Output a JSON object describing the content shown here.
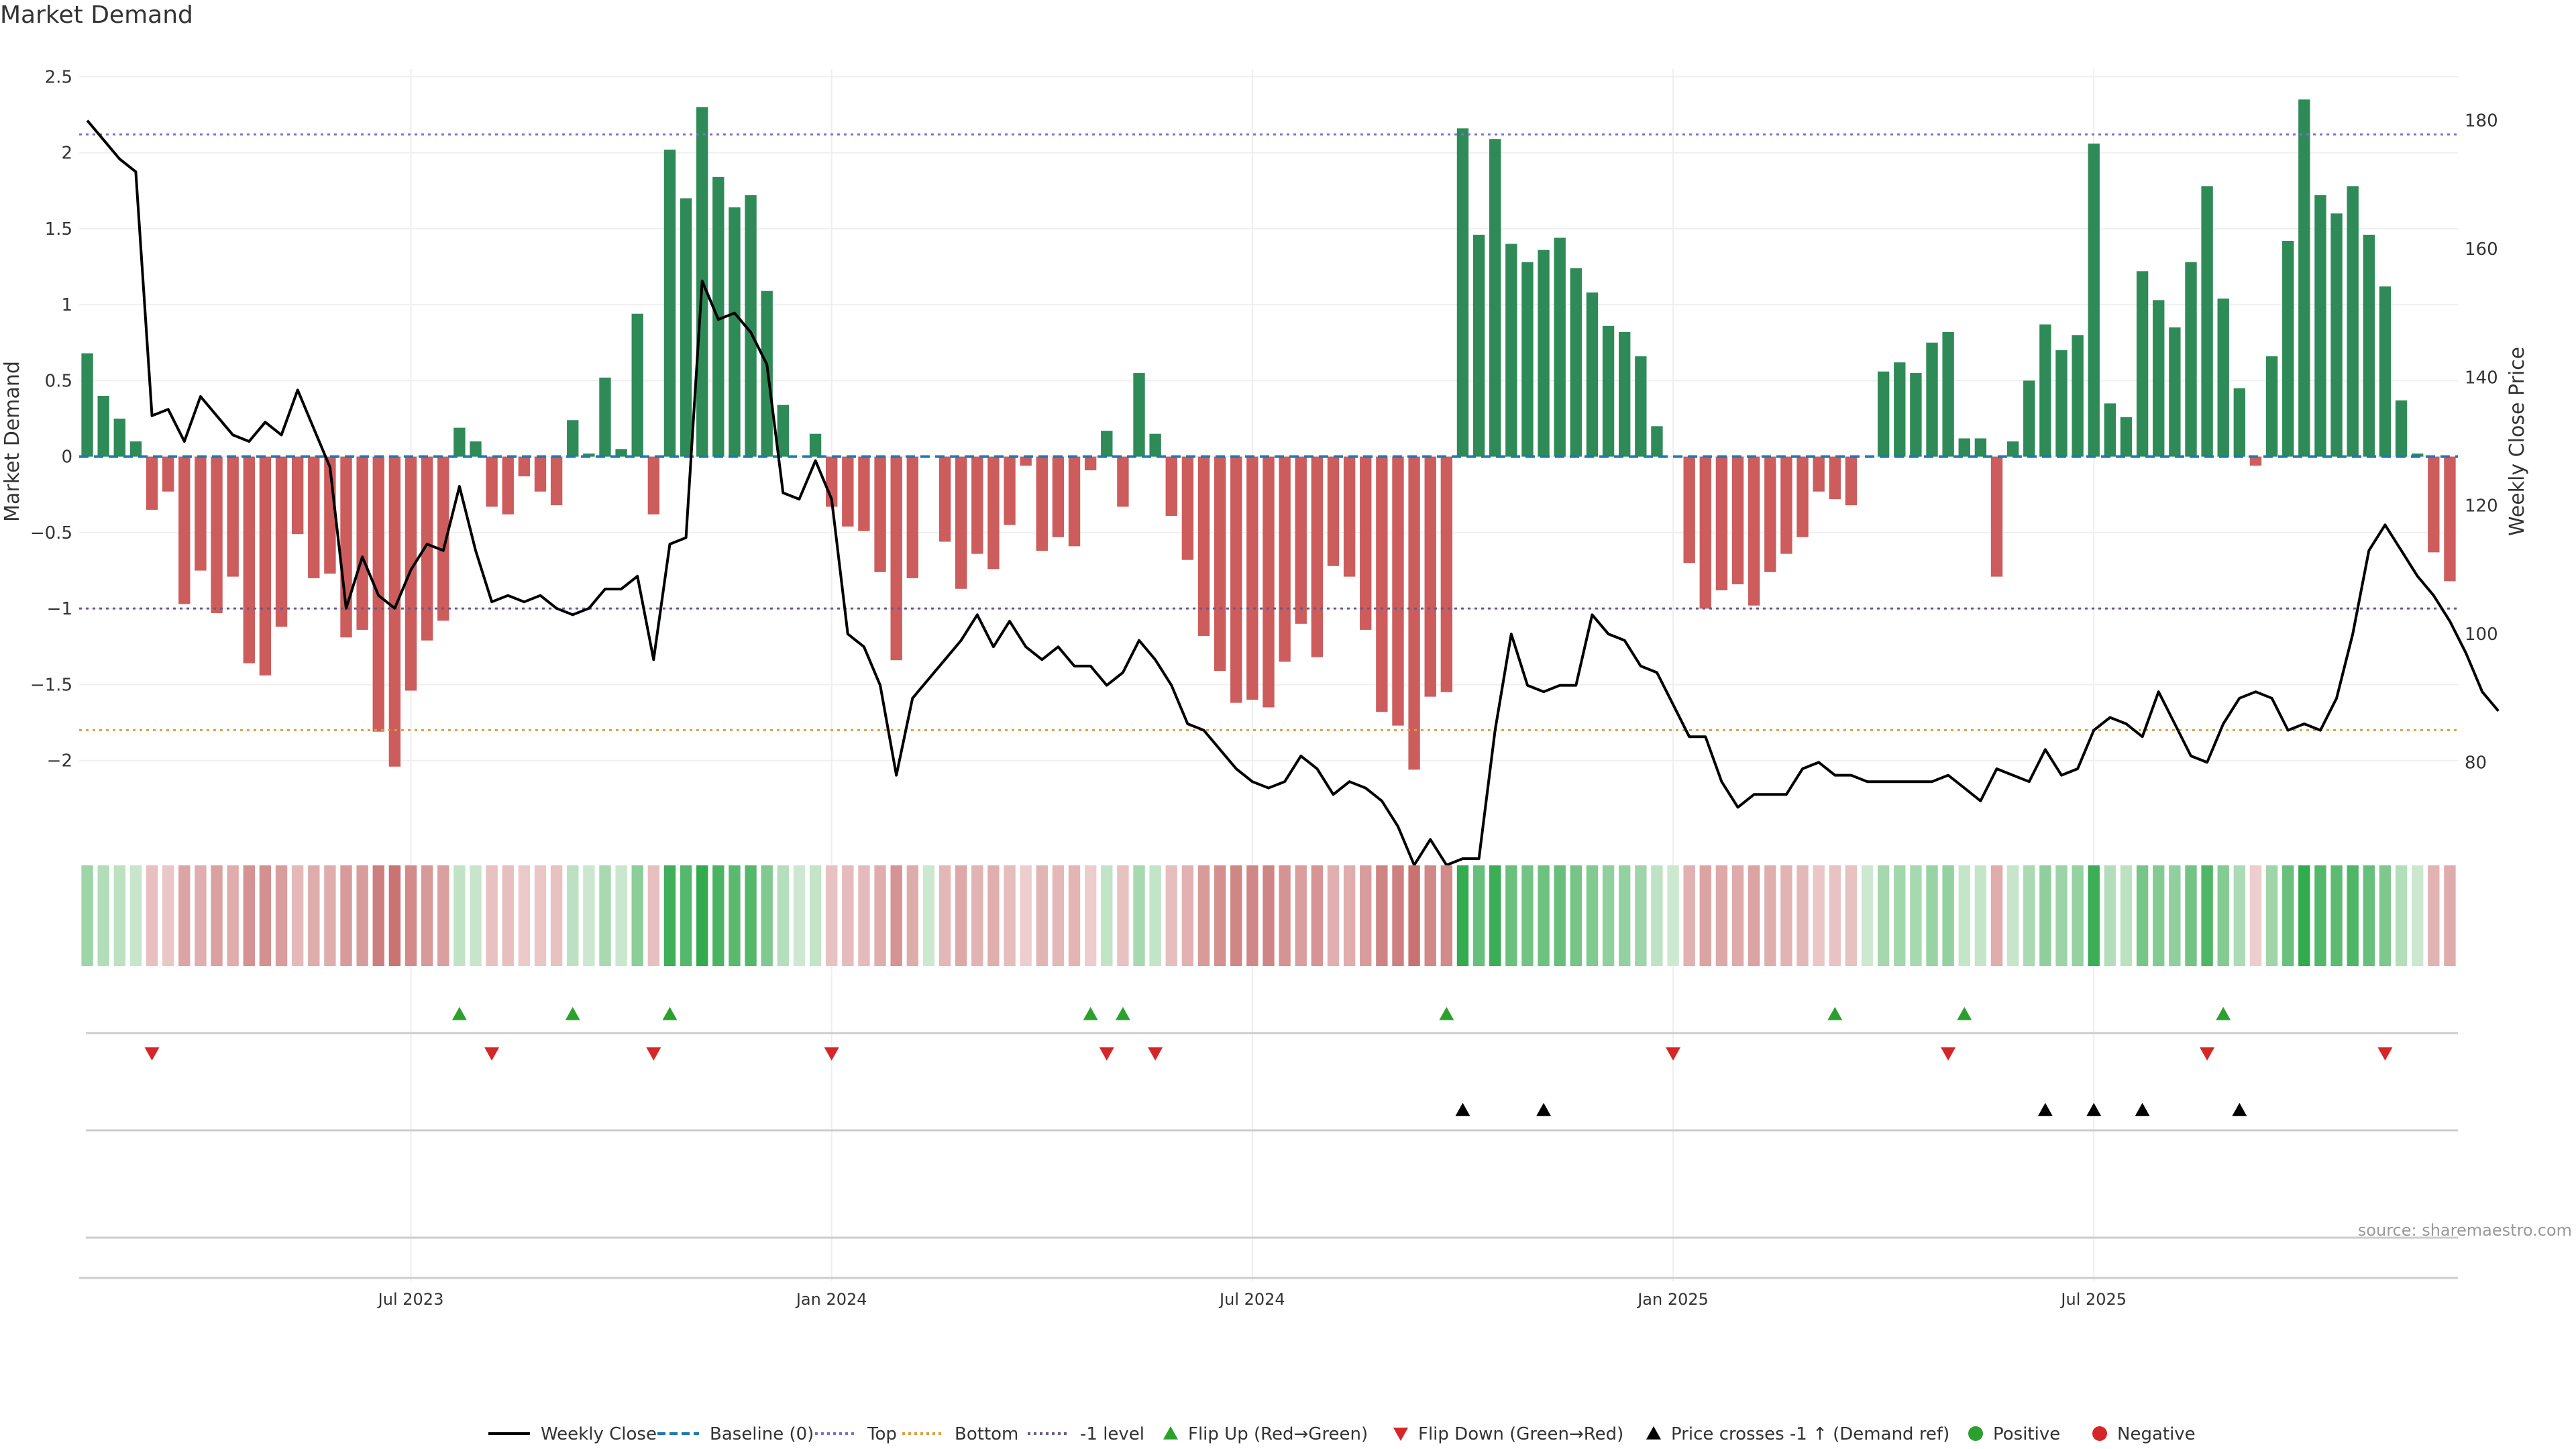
{
  "chart_data": {
    "type": "bar",
    "title": "Market Demand",
    "ylabel": "Market Demand",
    "y2label": "Weekly Close Price",
    "ylim": [
      -2.35,
      2.55
    ],
    "y2lim": [
      72,
      188
    ],
    "yticks": [
      "2.5",
      "2",
      "1.5",
      "1",
      "0.5",
      "0",
      "−0.5",
      "−1",
      "−1.5",
      "−2"
    ],
    "y2ticks": [
      "180",
      "160",
      "140",
      "120",
      "100",
      "80"
    ],
    "xticks": [
      "Jul 2023",
      "Jan 2024",
      "Jul 2024",
      "Jan 2025",
      "Jul 2025"
    ],
    "reference_lines": {
      "top": 2.12,
      "bottom": -1.8,
      "minus_one": -1.0,
      "baseline": 0
    },
    "colors": {
      "positive": "#2e8b57",
      "negative": "#cd5c5c",
      "price": "#000000",
      "top": "#7b6fd1",
      "bottom": "#d8a03c",
      "minus_one": "#6a5a8a",
      "baseline": "#1f77b4",
      "flip_up": "#2ca02c",
      "flip_down": "#d62728",
      "cross": "#000000"
    },
    "series": [
      {
        "name": "Market Demand",
        "values": [
          0.68,
          0.4,
          0.25,
          0.1,
          -0.35,
          -0.23,
          -0.97,
          -0.75,
          -1.03,
          -0.79,
          -1.36,
          -1.44,
          -1.12,
          -0.51,
          -0.8,
          -0.77,
          -1.19,
          -1.14,
          -1.81,
          -2.04,
          -1.54,
          -1.21,
          -1.08,
          0.19,
          0.1,
          -0.33,
          -0.38,
          -0.13,
          -0.23,
          -0.32,
          0.24,
          0.02,
          0.52,
          0.05,
          0.94,
          -0.38,
          2.02,
          1.7,
          2.3,
          1.84,
          1.64,
          1.72,
          1.09,
          0.34,
          0.0,
          0.15,
          -0.33,
          -0.46,
          -0.49,
          -0.76,
          -1.34,
          -0.8,
          0.0,
          -0.56,
          -0.87,
          -0.64,
          -0.74,
          -0.45,
          -0.06,
          -0.62,
          -0.53,
          -0.59,
          -0.09,
          0.17,
          -0.33,
          0.55,
          0.15,
          -0.39,
          -0.68,
          -1.18,
          -1.41,
          -1.62,
          -1.6,
          -1.65,
          -1.35,
          -1.1,
          -1.32,
          -0.72,
          -0.79,
          -1.14,
          -1.68,
          -1.77,
          -2.06,
          -1.58,
          -1.55,
          2.16,
          1.46,
          2.09,
          1.4,
          1.28,
          1.36,
          1.44,
          1.24,
          1.08,
          0.86,
          0.82,
          0.66,
          0.2,
          0.0,
          -0.7,
          -1.0,
          -0.88,
          -0.84,
          -0.98,
          -0.76,
          -0.64,
          -0.53,
          -0.23,
          -0.28,
          -0.32,
          0.0,
          0.56,
          0.62,
          0.55,
          0.75,
          0.82,
          0.12,
          0.12,
          -0.79,
          0.1,
          0.5,
          0.87,
          0.7,
          0.8,
          2.06,
          0.35,
          0.26,
          1.22,
          1.03,
          0.85,
          1.28,
          1.78,
          1.04,
          0.45,
          -0.06,
          0.66,
          1.42,
          2.35,
          1.72,
          1.6,
          1.78,
          1.46,
          1.12,
          0.37,
          0.02,
          -0.63,
          -0.82
        ]
      },
      {
        "name": "Weekly Close",
        "values": [
          180,
          177,
          174,
          172,
          134,
          135,
          130,
          137,
          134,
          131,
          130,
          133,
          131,
          138,
          132,
          126,
          104,
          112,
          106,
          104,
          110,
          114,
          113,
          123,
          113,
          105,
          106,
          105,
          106,
          104,
          103,
          104,
          107,
          107,
          109,
          96,
          114,
          115,
          155,
          149,
          150,
          147,
          142,
          122,
          121,
          127,
          121,
          100,
          98,
          92,
          78,
          90,
          93,
          96,
          99,
          103,
          98,
          102,
          98,
          96,
          98,
          95,
          95,
          92,
          94,
          99,
          96,
          92,
          86,
          85,
          82,
          79,
          77,
          76,
          77,
          81,
          79,
          75,
          77,
          76,
          74,
          70,
          64,
          68,
          64,
          65,
          65,
          85,
          100,
          92,
          91,
          92,
          92,
          103,
          100,
          99,
          95,
          94,
          89,
          84,
          84,
          77,
          73,
          75,
          75,
          75,
          79,
          80,
          78,
          78,
          77,
          77,
          77,
          77,
          77,
          78,
          76,
          74,
          79,
          78,
          77,
          82,
          78,
          79,
          85,
          87,
          86,
          84,
          91,
          86,
          81,
          80,
          86,
          90,
          91,
          90,
          85,
          86,
          85,
          90,
          100,
          113,
          117,
          113,
          109,
          106,
          102,
          97,
          91,
          88
        ]
      }
    ],
    "tone_strip": [
      0.68,
      0.4,
      0.25,
      0.1,
      -0.35,
      -0.23,
      -0.97,
      -0.75,
      -1.03,
      -0.79,
      -1.36,
      -1.44,
      -1.12,
      -0.51,
      -0.8,
      -0.77,
      -1.19,
      -1.14,
      -1.81,
      -2.04,
      -1.54,
      -1.21,
      -1.08,
      0.19,
      0.1,
      -0.33,
      -0.38,
      -0.13,
      -0.23,
      -0.32,
      0.24,
      0.02,
      0.52,
      0.05,
      0.94,
      -0.38,
      2.02,
      1.7,
      2.3,
      1.84,
      1.64,
      1.72,
      1.09,
      0.34,
      0.0,
      0.15,
      -0.33,
      -0.46,
      -0.49,
      -0.76,
      -1.34,
      -0.8,
      0.0,
      -0.56,
      -0.87,
      -0.64,
      -0.74,
      -0.45,
      -0.06,
      -0.62,
      -0.53,
      -0.59,
      -0.09,
      0.17,
      -0.33,
      0.55,
      0.15,
      -0.39,
      -0.68,
      -1.18,
      -1.41,
      -1.62,
      -1.6,
      -1.65,
      -1.35,
      -1.1,
      -1.32,
      -0.72,
      -0.79,
      -1.14,
      -1.68,
      -1.77,
      -2.06,
      -1.58,
      -1.55,
      2.16,
      1.46,
      2.09,
      1.4,
      1.28,
      1.36,
      1.44,
      1.24,
      1.08,
      0.86,
      0.82,
      0.66,
      0.2,
      0.0,
      -0.7,
      -1.0,
      -0.88,
      -0.84,
      -0.98,
      -0.76,
      -0.64,
      -0.53,
      -0.23,
      -0.28,
      -0.32,
      0.0,
      0.56,
      0.62,
      0.55,
      0.75,
      0.82,
      0.12,
      0.12,
      -0.79,
      0.1,
      0.5,
      0.87,
      0.7,
      0.8,
      2.06,
      0.35,
      0.26,
      1.22,
      1.03,
      0.85,
      1.28,
      1.78,
      1.04,
      0.45,
      -0.06,
      0.66,
      1.42,
      2.35,
      1.72,
      1.6,
      1.78,
      1.46,
      1.12,
      0.37,
      0.02,
      -0.63,
      -0.82
    ],
    "flip_up_weeks": [
      23,
      30,
      36,
      62,
      64,
      84,
      108,
      116,
      132
    ],
    "flip_down_weeks": [
      4,
      25,
      35,
      46,
      63,
      66,
      98,
      115,
      131,
      142
    ],
    "price_cross_weeks": [
      85,
      90,
      121,
      124,
      127,
      133
    ],
    "legend": [
      "Weekly Close",
      "Baseline (0)",
      "Top",
      "Bottom",
      "-1 level",
      "Flip Up (Red→Green)",
      "Flip Down (Green→Red)",
      "Price crosses -1 ↑ (Demand ref)",
      "Positive",
      "Negative"
    ],
    "legend_position": "bottom"
  },
  "source": "source: sharemaestro.com"
}
